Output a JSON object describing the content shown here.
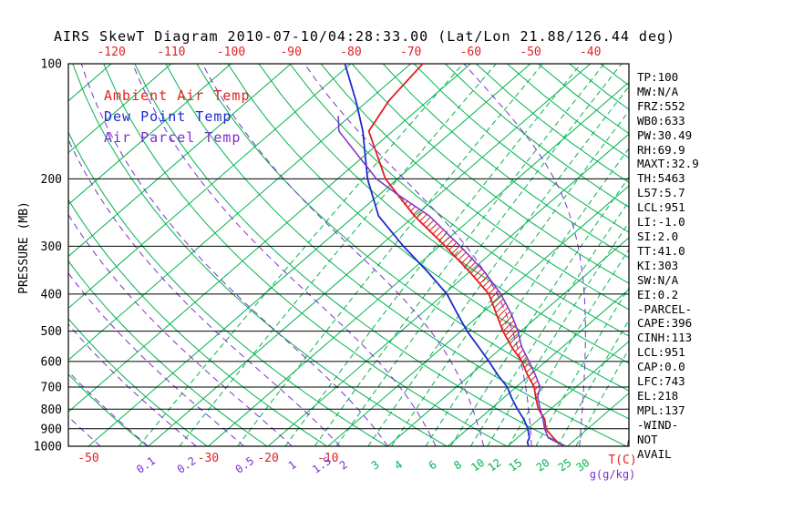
{
  "title": "AIRS SkewT Diagram 2010-07-10/04:28:33.00 (Lat/Lon 21.88/126.44 deg)",
  "legend": [
    {
      "label": "Ambient Air Temp",
      "color": "#e02020"
    },
    {
      "label": "Dew Point Temp",
      "color": "#1f2ad0"
    },
    {
      "label": "Air Parcel Temp",
      "color": "#7b2fd0"
    }
  ],
  "stats": [
    "TP:100",
    "MW:N/A",
    "FRZ:552",
    "WB0:633",
    "PW:30.49",
    "RH:69.9",
    "MAXT:32.9",
    "TH:5463",
    "L57:5.7",
    "LCL:951",
    "LI:-1.0",
    "SI:2.0",
    "TT:41.0",
    "KI:303",
    "SW:N/A",
    "EI:0.2",
    "-PARCEL-",
    "CAPE:396",
    "CINH:113",
    "LCL:951",
    "CAP:0.0",
    "LFC:743",
    "EL:218",
    "MPL:137",
    "-WIND-",
    "NOT",
    "AVAIL"
  ],
  "axes": {
    "pressure_label": "PRESSURE (MB)",
    "pressure_ticks": [
      100,
      200,
      300,
      400,
      500,
      600,
      700,
      800,
      900,
      1000
    ],
    "top_temp_ticks": [
      -120,
      -110,
      -100,
      -90,
      -80,
      -70,
      -60,
      -50,
      -40
    ],
    "bottom_temp_ticks": [
      -50,
      -30,
      -20,
      -10
    ],
    "temp_unit_label": "T(C)",
    "mixing_unit_label": "g(g/kg)",
    "mixing_ratio_labels": [
      0.1,
      0.2,
      0.5,
      1,
      1.5,
      2,
      3,
      4,
      6,
      8,
      10,
      12,
      15,
      20,
      25,
      30
    ]
  },
  "colors": {
    "grid_green": "#00b44e",
    "red": "#e02020",
    "blue": "#1f2ad0",
    "purple": "#7b2fd0",
    "black": "#000000"
  },
  "chart_data": {
    "type": "skewt_log_p",
    "pressure_range_mb": [
      100,
      1000
    ],
    "temp_axis_range_c_at_1000mb": [
      -50,
      40
    ],
    "isotherms_c": [
      -120,
      -110,
      -100,
      -90,
      -80,
      -70,
      -60,
      -50,
      -40,
      -30,
      -20,
      -10,
      0,
      10,
      20,
      30,
      40
    ],
    "dry_adiabats_theta_k": [
      233,
      243,
      253,
      263,
      273,
      283,
      293,
      303,
      313,
      323,
      333,
      343,
      353,
      363,
      373,
      383,
      393,
      403,
      413,
      423,
      433,
      443,
      453,
      463,
      473
    ],
    "moist_adiabat_start_temps_c": [
      -48,
      -40,
      -32,
      -24,
      -16,
      -8,
      0,
      8,
      16,
      24,
      32,
      40
    ],
    "mixing_ratios_g_kg": [
      0.1,
      0.2,
      0.5,
      1,
      1.5,
      2,
      3,
      4,
      6,
      8,
      10,
      12,
      15,
      20,
      25,
      30
    ],
    "cape_hatch_between_mb": [
      743,
      218
    ],
    "series": [
      {
        "name": "Ambient Air Temp",
        "color": "#e02020",
        "points_p_t": [
          [
            1000,
            29.5
          ],
          [
            975,
            27.5
          ],
          [
            950,
            26
          ],
          [
            925,
            24.5
          ],
          [
            900,
            23
          ],
          [
            850,
            21
          ],
          [
            800,
            18
          ],
          [
            750,
            15.5
          ],
          [
            700,
            13
          ],
          [
            650,
            9.5
          ],
          [
            600,
            6
          ],
          [
            550,
            1.5
          ],
          [
            500,
            -3
          ],
          [
            450,
            -7.5
          ],
          [
            400,
            -12.5
          ],
          [
            350,
            -20
          ],
          [
            300,
            -29
          ],
          [
            250,
            -40
          ],
          [
            200,
            -52
          ],
          [
            150,
            -64
          ],
          [
            125,
            -66.5
          ],
          [
            100,
            -68
          ]
        ]
      },
      {
        "name": "Dew Point Temp",
        "color": "#1f2ad0",
        "points_p_t": [
          [
            1000,
            23.5
          ],
          [
            975,
            22.5
          ],
          [
            950,
            22
          ],
          [
            925,
            21
          ],
          [
            900,
            20
          ],
          [
            850,
            17.5
          ],
          [
            800,
            14.5
          ],
          [
            750,
            11.5
          ],
          [
            700,
            8.5
          ],
          [
            650,
            4.5
          ],
          [
            600,
            0.5
          ],
          [
            550,
            -4
          ],
          [
            500,
            -9
          ],
          [
            450,
            -14
          ],
          [
            400,
            -19.5
          ],
          [
            350,
            -27
          ],
          [
            300,
            -36
          ],
          [
            250,
            -46
          ],
          [
            200,
            -55
          ],
          [
            150,
            -65
          ],
          [
            125,
            -72
          ],
          [
            100,
            -81
          ]
        ]
      },
      {
        "name": "Air Parcel Temp",
        "color": "#7b2fd0",
        "points_p_t": [
          [
            1000,
            29.5
          ],
          [
            951,
            25.2
          ],
          [
            900,
            22.8
          ],
          [
            850,
            20.7
          ],
          [
            800,
            18.3
          ],
          [
            743,
            15.5
          ],
          [
            700,
            14
          ],
          [
            650,
            10.8
          ],
          [
            600,
            7.2
          ],
          [
            550,
            3.2
          ],
          [
            500,
            -0.5
          ],
          [
            450,
            -5
          ],
          [
            400,
            -10.5
          ],
          [
            350,
            -17.5
          ],
          [
            300,
            -26.5
          ],
          [
            250,
            -37.5
          ],
          [
            218,
            -47.5
          ],
          [
            200,
            -53.5
          ],
          [
            150,
            -69
          ],
          [
            137,
            -72
          ]
        ]
      }
    ]
  }
}
